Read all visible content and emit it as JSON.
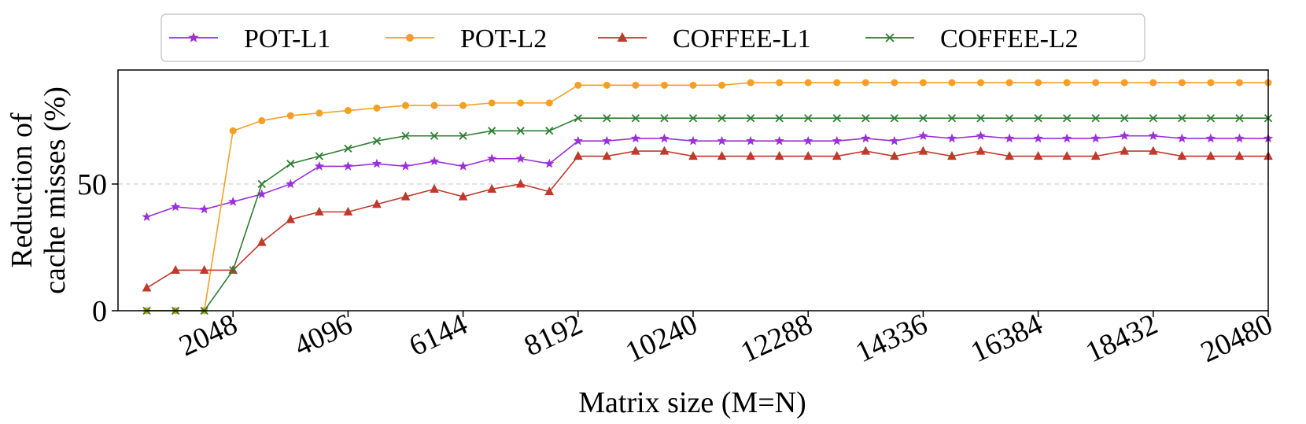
{
  "chart_data": {
    "type": "line",
    "title": "",
    "xlabel": "Matrix size (M=N)",
    "ylabel": [
      "Reduction of",
      "cache misses (%)"
    ],
    "x": [
      512,
      1024,
      1536,
      2048,
      2560,
      3072,
      3584,
      4096,
      4608,
      5120,
      5632,
      6144,
      6656,
      7168,
      7680,
      8192,
      8704,
      9216,
      9728,
      10240,
      10752,
      11264,
      11776,
      12288,
      12800,
      13312,
      13824,
      14336,
      14848,
      15360,
      15872,
      16384,
      16896,
      17408,
      17920,
      18432,
      18944,
      19456,
      19968,
      20480
    ],
    "xticks": [
      2048,
      4096,
      6144,
      8192,
      10240,
      12288,
      14336,
      16384,
      18432,
      20480
    ],
    "xtick_labels": [
      "2048",
      "4096",
      "6144",
      "8192",
      "10240",
      "12288",
      "14336",
      "16384",
      "18432",
      "20480"
    ],
    "yticks": [
      0,
      50
    ],
    "ytick_labels": [
      "0",
      "50"
    ],
    "xlim": [
      0,
      20480
    ],
    "ylim": [
      0,
      95
    ],
    "grid": "dashed horizontal at 50",
    "legend_position": "top-center",
    "series": [
      {
        "name": "POT-L1",
        "color": "#9b30d8",
        "marker": "star",
        "values": [
          37,
          41,
          40,
          43,
          46,
          50,
          57,
          57,
          58,
          57,
          59,
          57,
          60,
          60,
          58,
          67,
          67,
          68,
          68,
          67,
          67,
          67,
          67,
          67,
          67,
          68,
          67,
          69,
          68,
          69,
          68,
          68,
          68,
          68,
          69,
          69,
          68,
          68,
          68,
          68
        ]
      },
      {
        "name": "POT-L2",
        "color": "#f5a023",
        "marker": "circle",
        "values": [
          0,
          0,
          0,
          71,
          75,
          77,
          78,
          79,
          80,
          81,
          81,
          81,
          82,
          82,
          82,
          89,
          89,
          89,
          89,
          89,
          89,
          90,
          90,
          90,
          90,
          90,
          90,
          90,
          90,
          90,
          90,
          90,
          90,
          90,
          90,
          90,
          90,
          90,
          90,
          90
        ]
      },
      {
        "name": "COFFEE-L1",
        "color": "#c0392b",
        "marker": "triangle",
        "values": [
          9,
          16,
          16,
          16,
          27,
          36,
          39,
          39,
          42,
          45,
          48,
          45,
          48,
          50,
          47,
          61,
          61,
          63,
          63,
          61,
          61,
          61,
          61,
          61,
          61,
          63,
          61,
          63,
          61,
          63,
          61,
          61,
          61,
          61,
          63,
          63,
          61,
          61,
          61,
          61
        ]
      },
      {
        "name": "COFFEE-L2",
        "color": "#2e7d32",
        "marker": "x",
        "values": [
          0,
          0,
          0,
          16,
          50,
          58,
          61,
          64,
          67,
          69,
          69,
          69,
          71,
          71,
          71,
          76,
          76,
          76,
          76,
          76,
          76,
          76,
          76,
          76,
          76,
          76,
          76,
          76,
          76,
          76,
          76,
          76,
          76,
          76,
          76,
          76,
          76,
          76,
          76,
          76
        ]
      }
    ]
  }
}
